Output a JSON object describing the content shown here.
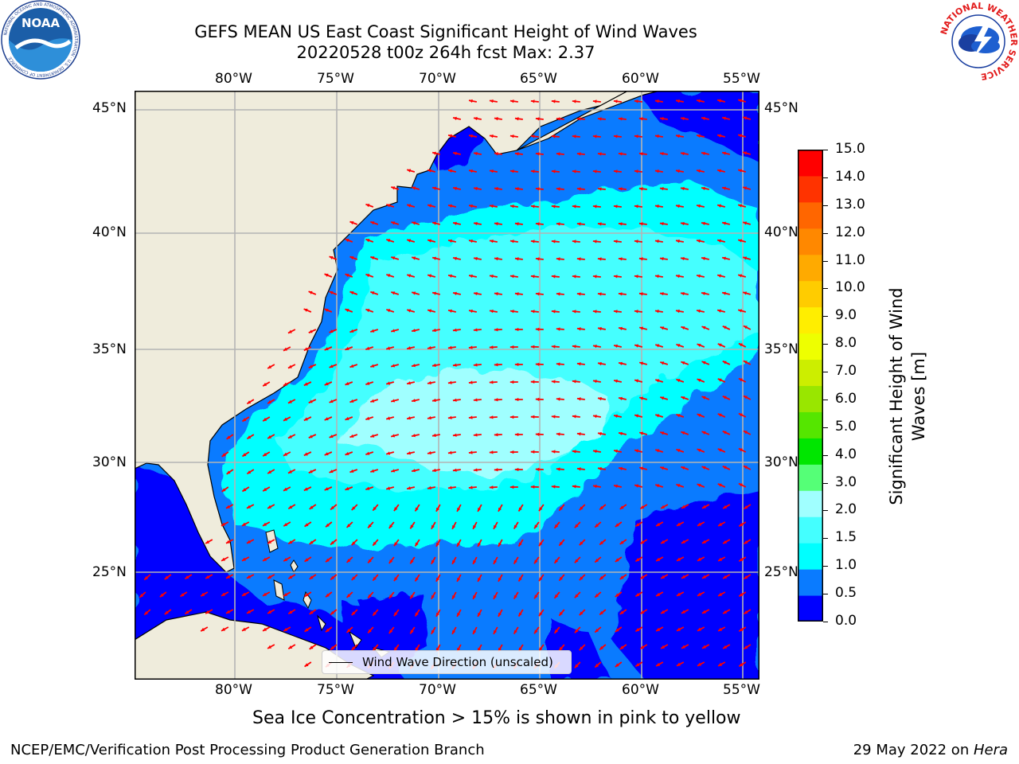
{
  "header": {
    "title_line1": "GEFS MEAN US East Coast Significant Height of Wind Waves",
    "title_line2": "20220528 t00z 264h fcst   Max: 2.37"
  },
  "logos": {
    "noaa_text": "NOAA",
    "noaa_ring_text": "NATIONAL OCEANIC AND ATMOSPHERIC ADMINISTRATION · U.S. DEPARTMENT OF COMMERCE",
    "nws_ring_text": "NATIONAL WEATHER SERVICE"
  },
  "map": {
    "lon_labels": [
      "80°W",
      "75°W",
      "70°W",
      "65°W",
      "60°W",
      "55°W"
    ],
    "lat_labels": [
      "45°N",
      "40°N",
      "35°N",
      "30°N",
      "25°N"
    ],
    "legend_text": "Wind Wave Direction (unscaled)",
    "land_color": "#efecdc",
    "arrow_color": "#ff0000",
    "gridlines": true
  },
  "colorbar": {
    "label_line1": "Significant Height of Wind",
    "label_line2": "Waves [m]",
    "ticks": [
      "15.0",
      "14.0",
      "13.0",
      "12.0",
      "11.0",
      "10.0",
      "9.0",
      "8.0",
      "7.0",
      "6.0",
      "5.0",
      "4.0",
      "3.0",
      "2.0",
      "1.5",
      "1.0",
      "0.5",
      "0.0"
    ],
    "colors_bottom_to_top": [
      "#0000ff",
      "#0a7bff",
      "#00ffff",
      "#44ffff",
      "#a0ffff",
      "#55ff77",
      "#00e600",
      "#55e600",
      "#99e600",
      "#ccee00",
      "#eeff00",
      "#ffee00",
      "#ffcc00",
      "#ffaa00",
      "#ff8800",
      "#ff6600",
      "#ff3300",
      "#ff0000"
    ]
  },
  "caption": "Sea Ice Concentration > 15% is shown in pink to yellow",
  "footer": {
    "left": "NCEP/EMC/Verification Post Processing Product Generation Branch",
    "right_prefix": "29 May 2022 on ",
    "right_host": "Hera"
  }
}
